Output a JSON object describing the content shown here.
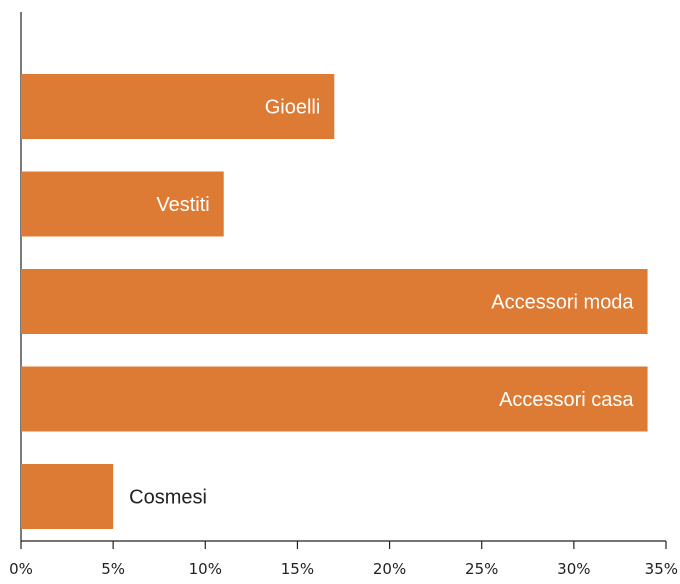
{
  "chart_data": {
    "type": "bar",
    "orientation": "horizontal",
    "categories": [
      "Gioelli",
      "Vestiti",
      "Accessori moda",
      "Accessori casa",
      "Cosmesi"
    ],
    "values": [
      17,
      11,
      34,
      34,
      5
    ],
    "unit": "%",
    "xlim": [
      0,
      35
    ],
    "ticks": [
      "0%",
      "5%",
      "10%",
      "15%",
      "20%",
      "25%",
      "30%",
      "35%"
    ],
    "title": "",
    "xlabel": "",
    "ylabel": "",
    "grid": false,
    "legend": "none",
    "bar_color": "#dd7b35",
    "inside_label_color": "#ffffff",
    "outside_label_color": "#222222"
  }
}
